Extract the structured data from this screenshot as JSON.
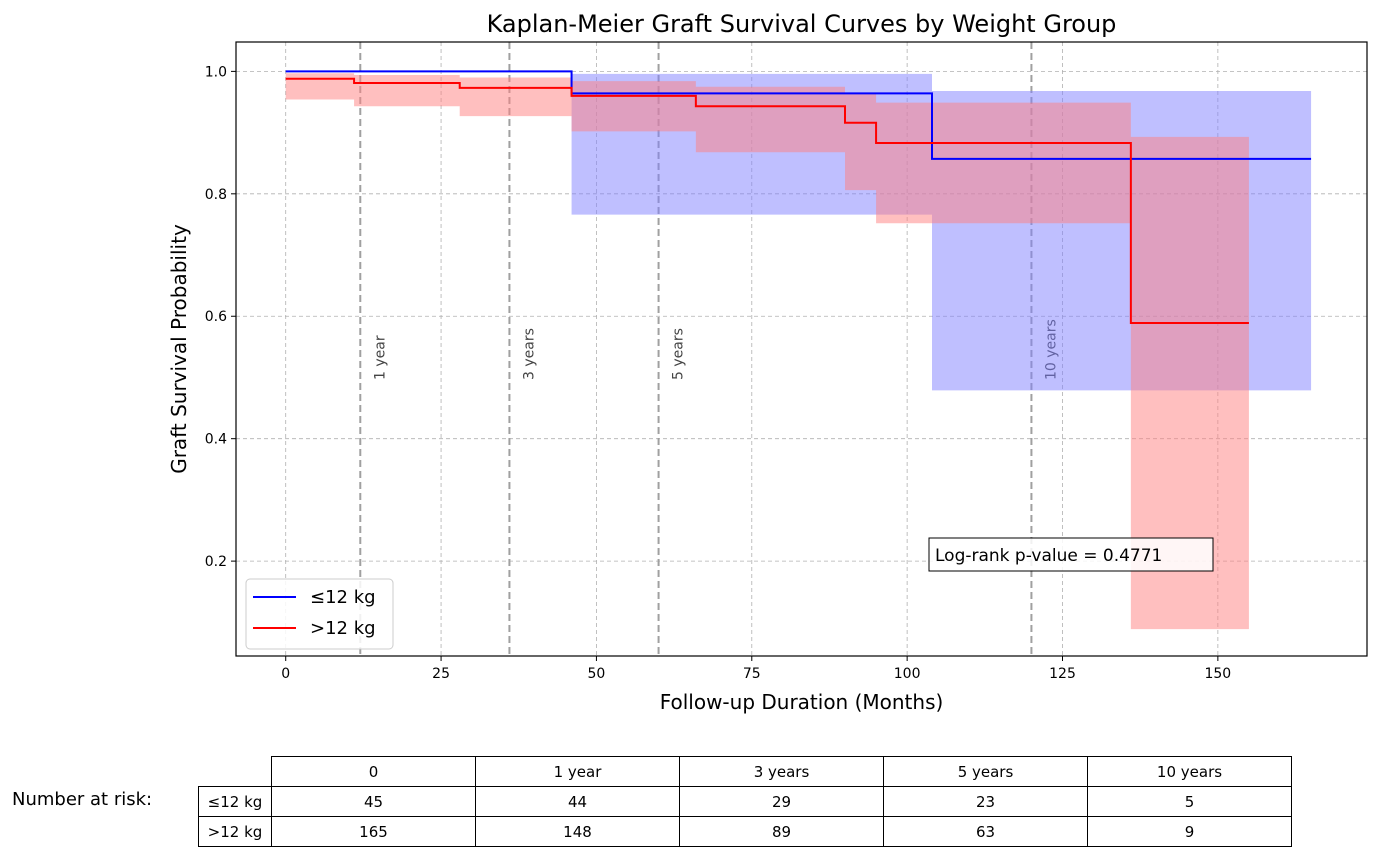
{
  "chart_data": {
    "type": "line",
    "title": "Kaplan-Meier Graft Survival Curves by Weight Group",
    "xlabel": "Follow-up Duration (Months)",
    "ylabel": "Graft Survival Probability",
    "xlim": [
      -8,
      174
    ],
    "ylim": [
      0.045,
      1.048
    ],
    "xticks": [
      0,
      25,
      50,
      75,
      100,
      125,
      150
    ],
    "yticks": [
      0.2,
      0.4,
      0.6,
      0.8,
      1.0
    ],
    "xtick_labels": [
      "0",
      "25",
      "50",
      "75",
      "100",
      "125",
      "150"
    ],
    "ytick_labels": [
      "0.2",
      "0.4",
      "0.6",
      "0.8",
      "1.0"
    ],
    "grid": true,
    "legend_position": "lower-left",
    "reference_lines": [
      {
        "x": 12,
        "label": "1 year"
      },
      {
        "x": 36,
        "label": "3 years"
      },
      {
        "x": 60,
        "label": "5 years"
      },
      {
        "x": 120,
        "label": "10 years"
      }
    ],
    "annotation": "Log-rank p-value = 0.4771",
    "series": [
      {
        "name": "≤12 kg",
        "color": "#0000ff",
        "band_color": "#8080ff",
        "steps": [
          {
            "x": 0,
            "y": 1.0,
            "lo": 1.0,
            "hi": 1.0
          },
          {
            "x": 46,
            "y": 0.964,
            "lo": 0.766,
            "hi": 0.996
          },
          {
            "x": 95,
            "y": 0.964,
            "lo": 0.766,
            "hi": 0.996
          },
          {
            "x": 104,
            "y": 0.857,
            "lo": 0.479,
            "hi": 0.968
          },
          {
            "x": 165,
            "y": 0.857,
            "lo": 0.479,
            "hi": 0.968
          }
        ]
      },
      {
        "name": ">12 kg",
        "color": "#ff0000",
        "band_color": "#ff8080",
        "steps": [
          {
            "x": 0,
            "y": 0.988,
            "lo": 0.954,
            "hi": 0.997
          },
          {
            "x": 11,
            "y": 0.981,
            "lo": 0.943,
            "hi": 0.994
          },
          {
            "x": 28,
            "y": 0.973,
            "lo": 0.927,
            "hi": 0.99
          },
          {
            "x": 46,
            "y": 0.96,
            "lo": 0.902,
            "hi": 0.984
          },
          {
            "x": 66,
            "y": 0.943,
            "lo": 0.868,
            "hi": 0.975
          },
          {
            "x": 90,
            "y": 0.916,
            "lo": 0.806,
            "hi": 0.964
          },
          {
            "x": 95,
            "y": 0.883,
            "lo": 0.752,
            "hi": 0.949
          },
          {
            "x": 136,
            "y": 0.589,
            "lo": 0.089,
            "hi": 0.893
          },
          {
            "x": 155,
            "y": 0.589,
            "lo": 0.089,
            "hi": 0.893
          }
        ]
      }
    ]
  },
  "risk_table": {
    "label": "Number at risk:",
    "columns": [
      "0",
      "1 year",
      "3 years",
      "5 years",
      "10 years"
    ],
    "rows": [
      {
        "name": "≤12 kg",
        "values": [
          "45",
          "44",
          "29",
          "23",
          "5"
        ]
      },
      {
        "name": ">12 kg",
        "values": [
          "165",
          "148",
          "89",
          "63",
          "9"
        ]
      }
    ]
  }
}
